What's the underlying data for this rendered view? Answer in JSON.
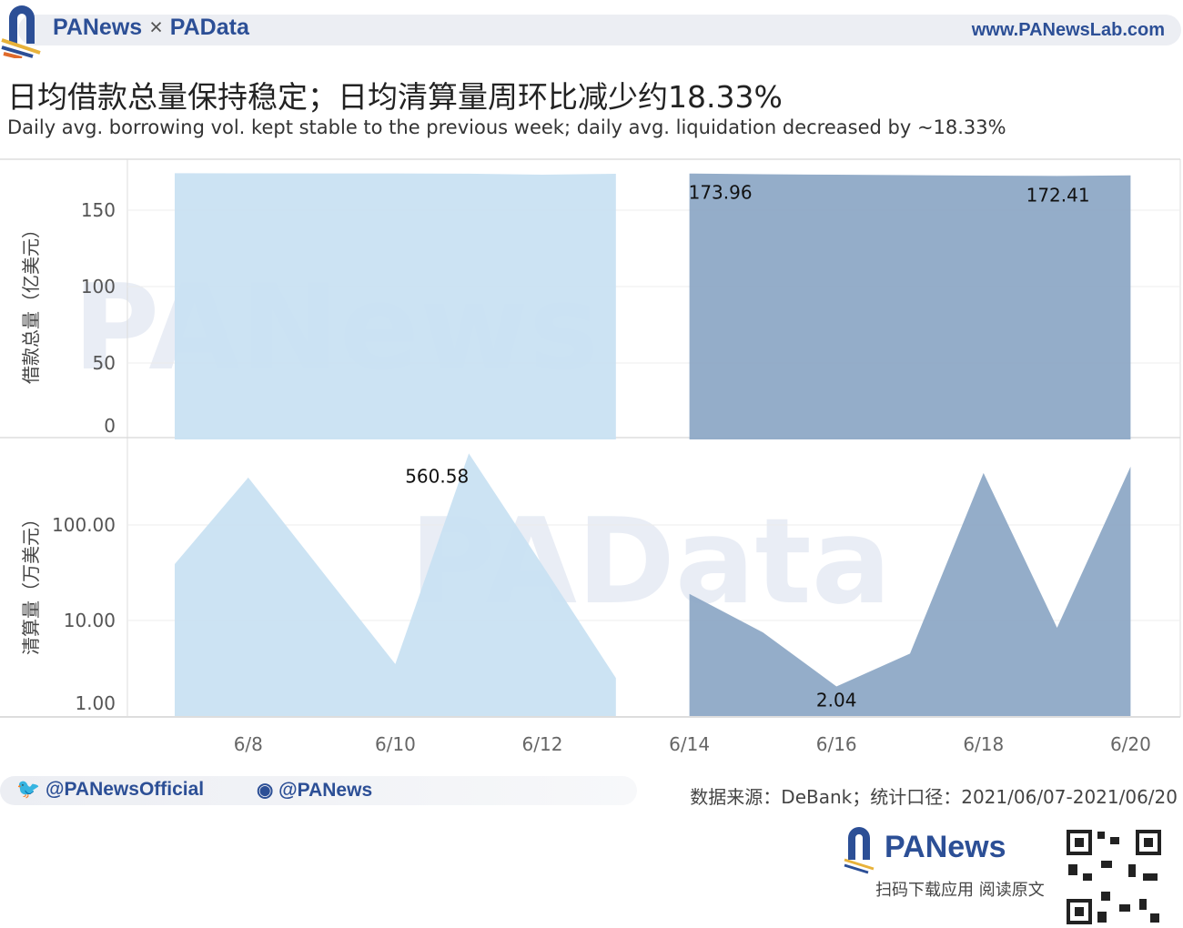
{
  "header": {
    "brand_left": "PANews",
    "brand_sep": "×",
    "brand_right": "PAData",
    "site": "www.PANewsLab.com"
  },
  "title": "日均借款总量保持稳定；日均清算量周环比减少约18.33%",
  "subtitle": "Daily avg. borrowing vol. kept stable to the previous week; daily avg. liquidation decreased by ~18.33%",
  "footer": {
    "twitter": "@PANewsOfficial",
    "weibo": "@PANews",
    "source": "数据来源：DeBank；统计口径：2021/06/07-2021/06/20",
    "logo": "PANews",
    "scan": "扫码下载应用  阅读原文"
  },
  "colors": {
    "week1": "#c9e1f2",
    "week2": "#8ea9c6",
    "brand": "#2c4f96"
  },
  "chart_data": [
    {
      "type": "area",
      "ylabel": "借款总量（亿美元）",
      "ylim": [
        0,
        180
      ],
      "yticks": [
        0,
        50,
        100,
        150
      ],
      "grid": true,
      "x": [
        "6/7",
        "6/8",
        "6/9",
        "6/10",
        "6/11",
        "6/12",
        "6/13",
        "6/14",
        "6/15",
        "6/16",
        "6/17",
        "6/18",
        "6/19",
        "6/20"
      ],
      "xticks": [
        "6/8",
        "6/10",
        "6/12",
        "6/14",
        "6/16",
        "6/18",
        "6/20"
      ],
      "series": [
        {
          "values": [
            174.2,
            174.1,
            174.0,
            174.0,
            173.9,
            173.2,
            173.8,
            173.96,
            173.5,
            173.2,
            172.9,
            172.6,
            172.41,
            172.8
          ]
        }
      ],
      "annotations": [
        {
          "x": "6/14",
          "label": "173.96"
        },
        {
          "x": "6/19",
          "label": "172.41"
        }
      ]
    },
    {
      "type": "area",
      "ylabel": "清算量（万美元）",
      "yscale": "log",
      "ylim": [
        1,
        800
      ],
      "yticks": [
        1,
        10,
        100
      ],
      "ytick_labels": [
        "1.00",
        "10.00",
        "100.00"
      ],
      "grid": true,
      "x": [
        "6/7",
        "6/8",
        "6/9",
        "6/10",
        "6/11",
        "6/12",
        "6/13",
        "6/14",
        "6/15",
        "6/16",
        "6/17",
        "6/18",
        "6/19",
        "6/20"
      ],
      "xticks": [
        "6/8",
        "6/10",
        "6/12",
        "6/14",
        "6/16",
        "6/18",
        "6/20"
      ],
      "series": [
        {
          "values": [
            39,
            314,
            33,
            3.5,
            560.58,
            38,
            2.5,
            19,
            7.5,
            2.04,
            4.5,
            350,
            8.4,
            408
          ]
        }
      ],
      "annotations": [
        {
          "x": "6/11",
          "label": "560.58"
        },
        {
          "x": "6/16",
          "label": "2.04"
        }
      ]
    }
  ]
}
